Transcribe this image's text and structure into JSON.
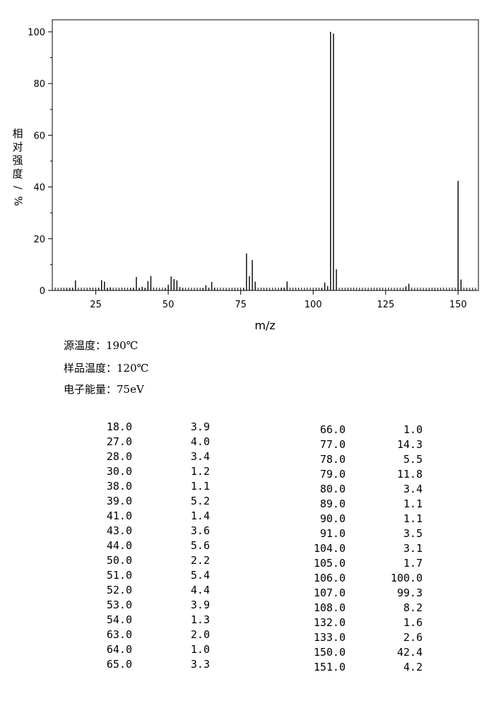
{
  "chart_data": {
    "type": "bar",
    "xlabel": "m/z",
    "ylabel": "相对强度/%",
    "ylim": [
      0,
      100
    ],
    "xlim": [
      10,
      157
    ],
    "xticks": [
      25,
      50,
      75,
      100,
      125,
      150
    ],
    "yticks": [
      0,
      20,
      40,
      60,
      80,
      100
    ],
    "grid": false,
    "peaks": [
      {
        "mz": 15,
        "i": 0.8
      },
      {
        "mz": 16,
        "i": 0.9
      },
      {
        "mz": 17,
        "i": 1.0
      },
      {
        "mz": 18,
        "i": 3.9
      },
      {
        "mz": 26,
        "i": 0.9
      },
      {
        "mz": 27,
        "i": 4.0
      },
      {
        "mz": 28,
        "i": 3.4
      },
      {
        "mz": 29,
        "i": 0.9
      },
      {
        "mz": 30,
        "i": 1.2
      },
      {
        "mz": 37,
        "i": 0.8
      },
      {
        "mz": 38,
        "i": 1.1
      },
      {
        "mz": 39,
        "i": 5.2
      },
      {
        "mz": 40,
        "i": 0.9
      },
      {
        "mz": 41,
        "i": 1.4
      },
      {
        "mz": 42,
        "i": 0.9
      },
      {
        "mz": 43,
        "i": 3.6
      },
      {
        "mz": 44,
        "i": 5.6
      },
      {
        "mz": 49,
        "i": 0.8
      },
      {
        "mz": 50,
        "i": 2.2
      },
      {
        "mz": 51,
        "i": 5.4
      },
      {
        "mz": 52,
        "i": 4.4
      },
      {
        "mz": 53,
        "i": 3.9
      },
      {
        "mz": 54,
        "i": 1.3
      },
      {
        "mz": 55,
        "i": 0.8
      },
      {
        "mz": 62,
        "i": 0.8
      },
      {
        "mz": 63,
        "i": 2.0
      },
      {
        "mz": 64,
        "i": 1.0
      },
      {
        "mz": 65,
        "i": 3.3
      },
      {
        "mz": 66,
        "i": 1.0
      },
      {
        "mz": 76,
        "i": 0.9
      },
      {
        "mz": 77,
        "i": 14.3
      },
      {
        "mz": 78,
        "i": 5.5
      },
      {
        "mz": 79,
        "i": 11.8
      },
      {
        "mz": 80,
        "i": 3.4
      },
      {
        "mz": 89,
        "i": 1.1
      },
      {
        "mz": 90,
        "i": 1.1
      },
      {
        "mz": 91,
        "i": 3.5
      },
      {
        "mz": 103,
        "i": 0.9
      },
      {
        "mz": 104,
        "i": 3.1
      },
      {
        "mz": 105,
        "i": 1.7
      },
      {
        "mz": 106,
        "i": 100.0
      },
      {
        "mz": 107,
        "i": 99.3
      },
      {
        "mz": 108,
        "i": 8.2
      },
      {
        "mz": 132,
        "i": 1.6
      },
      {
        "mz": 133,
        "i": 2.6
      },
      {
        "mz": 150,
        "i": 42.4
      },
      {
        "mz": 151,
        "i": 4.2
      }
    ]
  },
  "conditions": {
    "source_temp": "源温度：190℃",
    "sample_temp": "样品温度：120℃",
    "electron_energy": "电子能量：75eV"
  },
  "table": {
    "left": [
      [
        "18.0",
        "3.9"
      ],
      [
        "27.0",
        "4.0"
      ],
      [
        "28.0",
        "3.4"
      ],
      [
        "30.0",
        "1.2"
      ],
      [
        "38.0",
        "1.1"
      ],
      [
        "39.0",
        "5.2"
      ],
      [
        "41.0",
        "1.4"
      ],
      [
        "43.0",
        "3.6"
      ],
      [
        "44.0",
        "5.6"
      ],
      [
        "50.0",
        "2.2"
      ],
      [
        "51.0",
        "5.4"
      ],
      [
        "52.0",
        "4.4"
      ],
      [
        "53.0",
        "3.9"
      ],
      [
        "54.0",
        "1.3"
      ],
      [
        "63.0",
        "2.0"
      ],
      [
        "64.0",
        "1.0"
      ],
      [
        "65.0",
        "3.3"
      ]
    ],
    "right": [
      [
        "66.0",
        "1.0"
      ],
      [
        "77.0",
        "14.3"
      ],
      [
        "78.0",
        "5.5"
      ],
      [
        "79.0",
        "11.8"
      ],
      [
        "80.0",
        "3.4"
      ],
      [
        "89.0",
        "1.1"
      ],
      [
        "90.0",
        "1.1"
      ],
      [
        "91.0",
        "3.5"
      ],
      [
        "104.0",
        "3.1"
      ],
      [
        "105.0",
        "1.7"
      ],
      [
        "106.0",
        "100.0"
      ],
      [
        "107.0",
        "99.3"
      ],
      [
        "108.0",
        "8.2"
      ],
      [
        "132.0",
        "1.6"
      ],
      [
        "133.0",
        "2.6"
      ],
      [
        "150.0",
        "42.4"
      ],
      [
        "151.0",
        "4.2"
      ]
    ]
  }
}
